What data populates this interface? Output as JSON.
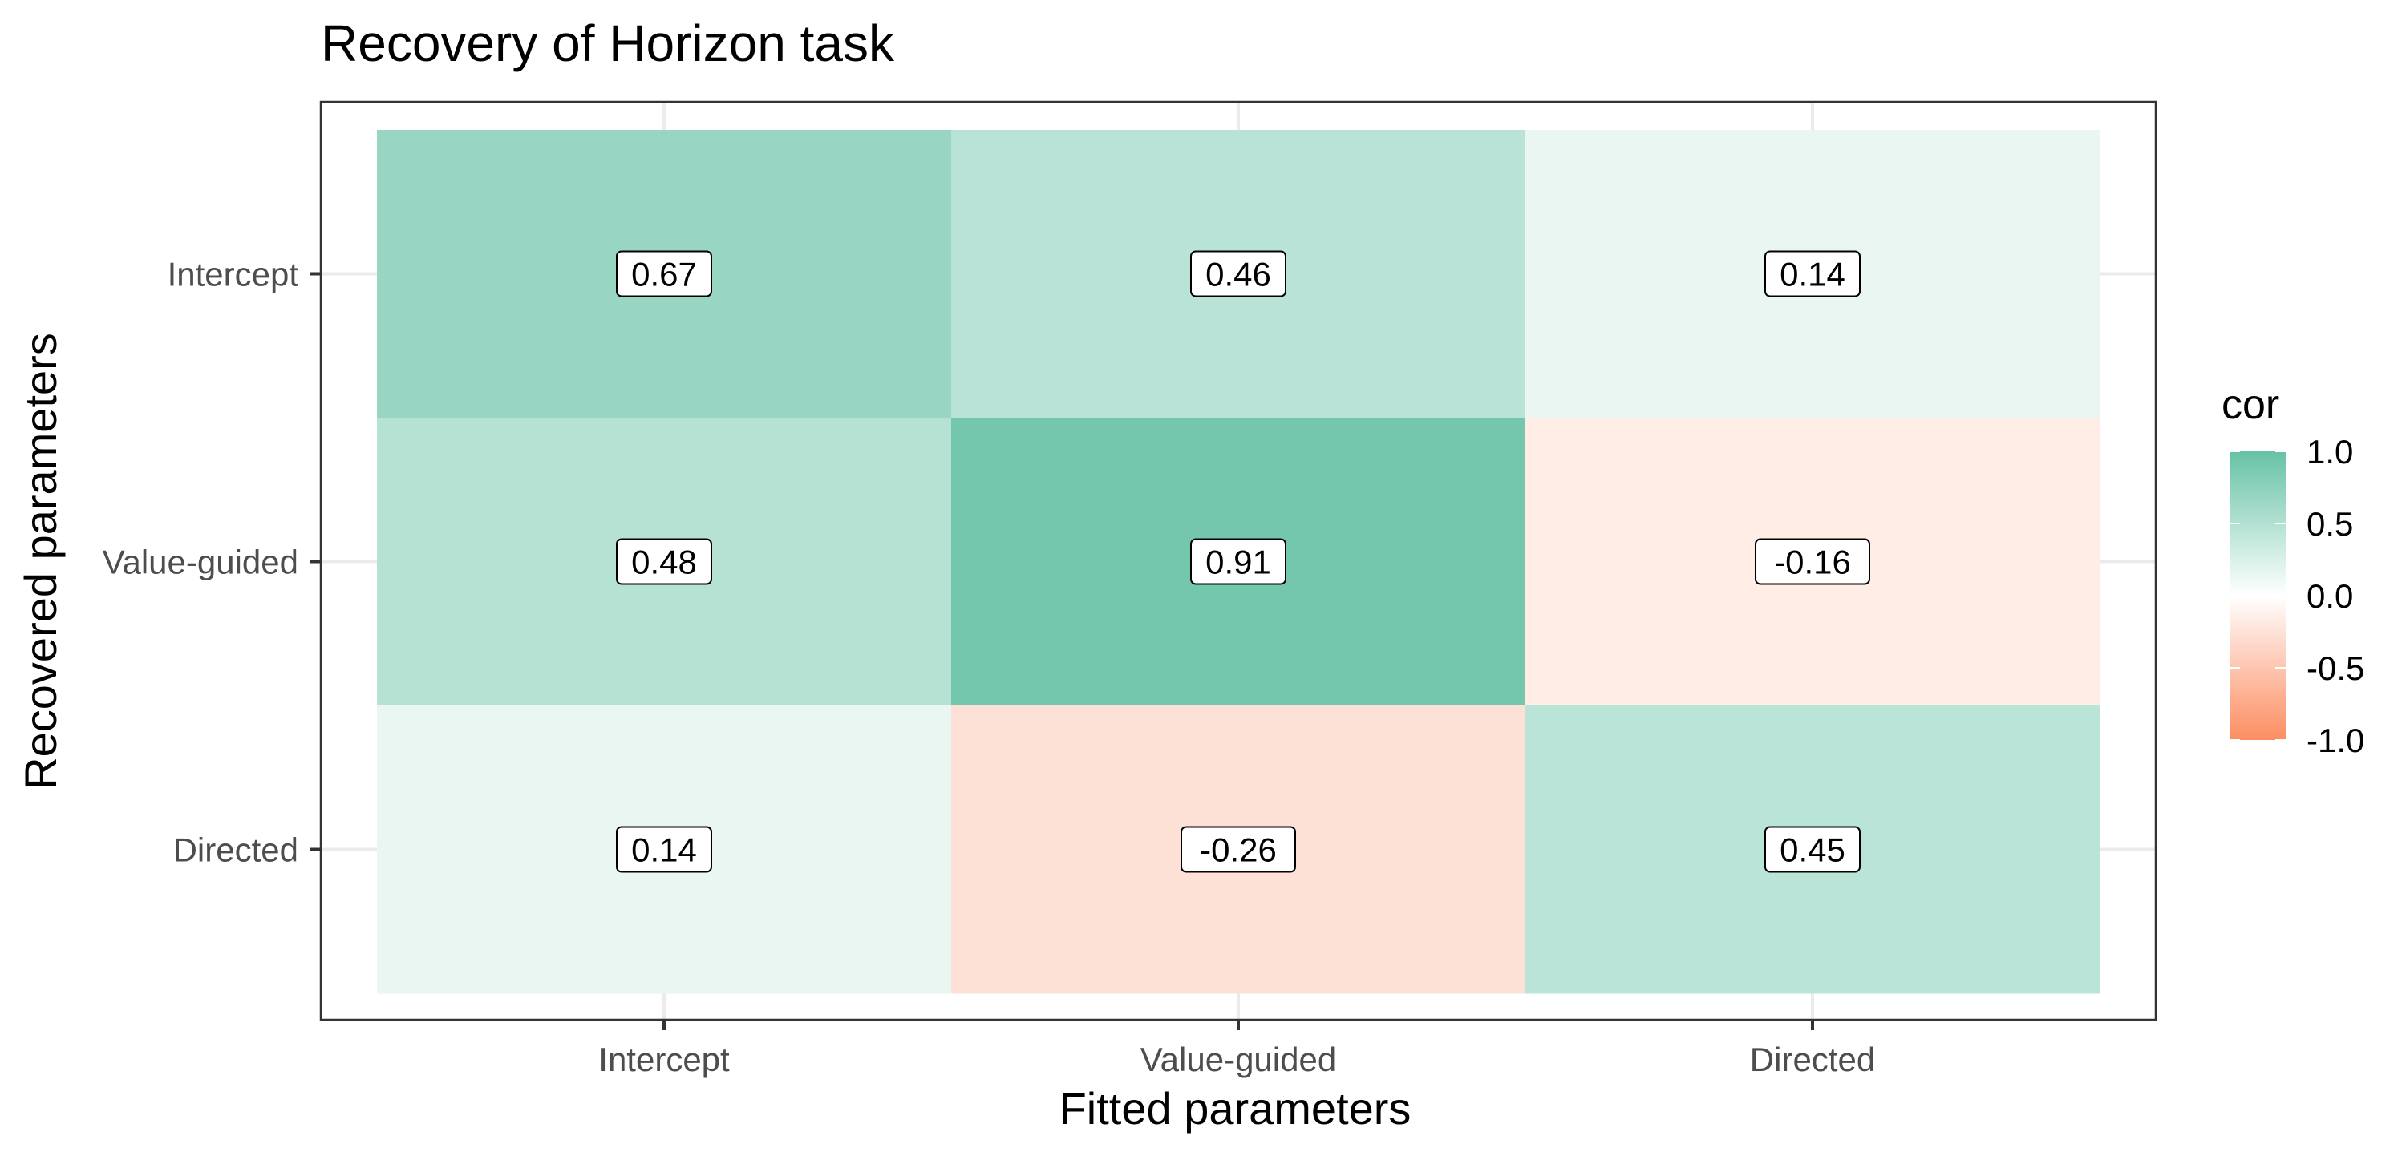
{
  "chart_data": {
    "type": "heatmap",
    "title": "Recovery of Horizon task",
    "xlabel": "Fitted parameters",
    "ylabel": "Recovered parameters",
    "x_categories": [
      "Intercept",
      "Value-guided",
      "Directed"
    ],
    "y_categories": [
      "Intercept",
      "Value-guided",
      "Directed"
    ],
    "values": [
      [
        0.67,
        0.46,
        0.14
      ],
      [
        0.48,
        0.91,
        -0.16
      ],
      [
        0.14,
        -0.26,
        0.45
      ]
    ],
    "value_labels": [
      [
        "0.67",
        "0.46",
        "0.14"
      ],
      [
        "0.48",
        "0.91",
        "-0.16"
      ],
      [
        "0.14",
        "-0.26",
        "0.45"
      ]
    ],
    "legend": {
      "title": "cor",
      "position": "right",
      "range": [
        -1.0,
        1.0
      ],
      "ticks": [
        1.0,
        0.5,
        0.0,
        -0.5,
        -1.0
      ],
      "tick_labels": [
        "1.0",
        "0.5",
        "0.0",
        "-0.5",
        "-1.0"
      ]
    },
    "colors": {
      "high": "#66c2a5",
      "mid": "#ffffff",
      "low": "#fc8d62"
    },
    "grid": true
  }
}
